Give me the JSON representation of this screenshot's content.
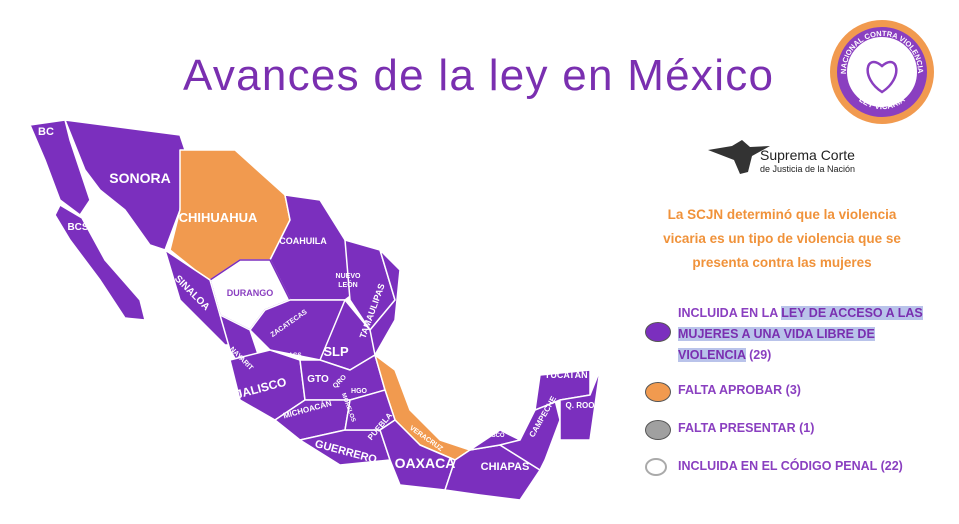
{
  "header": {
    "title": "Avances de la ley en México"
  },
  "logo": {
    "ring": "FRENTE NACIONAL CONTRA VIOLENCIA VICARIA",
    "bottom": "LEY VICARIA"
  },
  "scjn": {
    "name": "Suprema Corte",
    "sub": "de Justicia de la Nación"
  },
  "statement": [
    "La SCJN determinó que la violencia",
    "vicaria es un tipo de violencia que se",
    "presenta contra las mujeres"
  ],
  "legend": [
    {
      "prefix": "INCLUIDA EN LA ",
      "highlight": "LEY DE ACCESO A LAS MUJERES A UNA VIDA LIBRE DE VIOLENCIA",
      "count": "(29)"
    },
    {
      "prefix": "FALTA APROBAR",
      "count": "(3)"
    },
    {
      "prefix": "FALTA PRESENTAR",
      "count": "(1)"
    },
    {
      "prefix": "INCLUIDA EN EL CÓDIGO PENAL",
      "count": "(22)"
    }
  ],
  "map": {
    "labels": [
      "BC",
      "BCS",
      "SONORA",
      "CHIHUAHUA",
      "COAHUILA",
      "NUEVO",
      "LEÓN",
      "TAMAULIPAS",
      "SINALOA",
      "DURANGO",
      "ZACATECAS",
      "NAYARIT",
      "AGS",
      "SLP",
      "JALISCO",
      "GTO",
      "QRO",
      "HGO",
      "MICHOACÁN",
      "MORELOS",
      "PUEBLA",
      "VERACRUZ",
      "GUERRERO",
      "OAXACA",
      "TABASCO",
      "CHIAPAS",
      "CAMPECHE",
      "YUCATÁN",
      "Q. ROO"
    ]
  }
}
